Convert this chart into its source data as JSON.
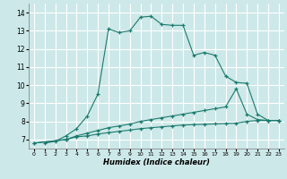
{
  "xlabel": "Humidex (Indice chaleur)",
  "bg_color": "#cde8e8",
  "grid_color": "#ffffff",
  "line_color": "#1a7a6e",
  "xlim": [
    -0.5,
    23.5
  ],
  "ylim": [
    6.5,
    14.5
  ],
  "xticks": [
    0,
    1,
    2,
    3,
    4,
    5,
    6,
    7,
    8,
    9,
    10,
    11,
    12,
    13,
    14,
    15,
    16,
    17,
    18,
    19,
    20,
    21,
    22,
    23
  ],
  "yticks": [
    7,
    8,
    9,
    10,
    11,
    12,
    13,
    14
  ],
  "curve1_x": [
    1,
    2,
    3,
    4,
    5,
    6,
    7,
    8,
    9,
    10,
    11,
    12,
    13,
    14,
    15,
    16,
    17,
    18,
    19,
    20,
    21,
    22,
    23
  ],
  "curve1_y": [
    6.8,
    6.9,
    7.2,
    7.6,
    8.3,
    9.5,
    13.1,
    12.9,
    13.0,
    13.75,
    13.8,
    13.35,
    13.3,
    13.3,
    11.65,
    11.8,
    11.65,
    10.5,
    10.15,
    10.1,
    8.4,
    8.05,
    8.05
  ],
  "curve2_x": [
    0,
    3,
    4,
    5,
    6,
    7,
    8,
    9,
    10,
    11,
    12,
    13,
    14,
    15,
    16,
    17,
    18,
    19,
    20,
    21,
    22,
    23
  ],
  "curve2_y": [
    6.8,
    7.0,
    7.2,
    7.35,
    7.5,
    7.65,
    7.75,
    7.85,
    8.0,
    8.1,
    8.2,
    8.3,
    8.4,
    8.5,
    8.6,
    8.7,
    8.8,
    9.8,
    8.4,
    8.1,
    8.05,
    8.05
  ],
  "curve3_x": [
    0,
    3,
    4,
    5,
    6,
    7,
    8,
    9,
    10,
    11,
    12,
    13,
    14,
    15,
    16,
    17,
    18,
    19,
    20,
    21,
    22,
    23
  ],
  "curve3_y": [
    6.8,
    7.0,
    7.15,
    7.2,
    7.3,
    7.38,
    7.45,
    7.52,
    7.6,
    7.65,
    7.7,
    7.75,
    7.8,
    7.82,
    7.84,
    7.86,
    7.88,
    7.9,
    8.0,
    8.05,
    8.05,
    8.05
  ]
}
